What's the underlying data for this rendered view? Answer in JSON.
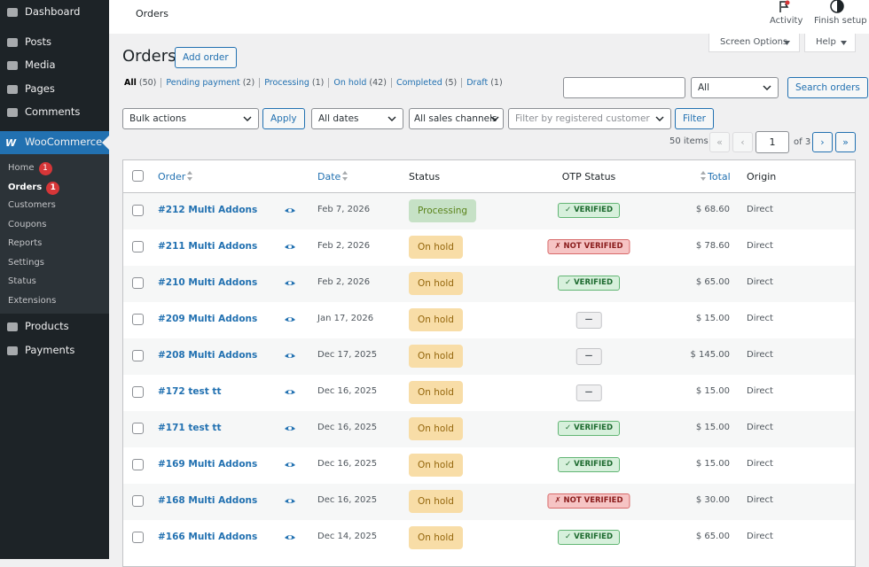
{
  "sidebar": {
    "top": [
      {
        "label": "Dashboard"
      },
      {
        "label": "Posts"
      },
      {
        "label": "Media"
      },
      {
        "label": "Pages"
      },
      {
        "label": "Comments"
      }
    ],
    "active": "WooCommerce",
    "submenu": [
      {
        "label": "Home",
        "badge": "1"
      },
      {
        "label": "Orders",
        "badge": "1"
      },
      {
        "label": "Customers"
      },
      {
        "label": "Coupons"
      },
      {
        "label": "Reports"
      },
      {
        "label": "Settings"
      },
      {
        "label": "Status"
      },
      {
        "label": "Extensions"
      }
    ],
    "bottom": [
      {
        "label": "Products"
      },
      {
        "label": "Payments"
      }
    ]
  },
  "topbar": {
    "title": "Orders",
    "activity": "Activity",
    "finish_setup": "Finish setup"
  },
  "screen_options": "Screen Options",
  "help": "Help",
  "page": {
    "title": "Orders",
    "add_button": "Add order"
  },
  "views": [
    {
      "label": "All",
      "count": "(50)"
    },
    {
      "label": "Pending payment",
      "count": "(2)"
    },
    {
      "label": "Processing",
      "count": "(1)"
    },
    {
      "label": "On hold",
      "count": "(42)"
    },
    {
      "label": "Completed",
      "count": "(5)"
    },
    {
      "label": "Draft",
      "count": "(1)"
    }
  ],
  "search": {
    "select": "All",
    "button": "Search orders"
  },
  "filters": {
    "bulk_actions": "Bulk actions",
    "apply": "Apply",
    "dates": "All dates",
    "channels": "All sales channels",
    "customer_placeholder": "Filter by registered customer",
    "filter": "Filter"
  },
  "pagination": {
    "items": "50 items",
    "first": "«",
    "prev": "‹",
    "current": "1",
    "of": "of 3",
    "next": "›",
    "last": "»"
  },
  "table": {
    "columns": [
      "Order",
      "Date",
      "Status",
      "OTP Status",
      "Total",
      "Origin"
    ],
    "rows": [
      [
        "#212 Multi Addons",
        "Feb 7, 2026",
        "Processing",
        "✓ VERIFIED",
        "$ 68.60",
        "Direct"
      ],
      [
        "#211 Multi Addons",
        "Feb 2, 2026",
        "On hold",
        "✗ NOT VERIFIED",
        "$ 78.60",
        "Direct"
      ],
      [
        "#210 Multi Addons",
        "Feb 2, 2026",
        "On hold",
        "✓ VERIFIED",
        "$ 65.00",
        "Direct"
      ],
      [
        "#209 Multi Addons",
        "Jan 17, 2026",
        "On hold",
        "—",
        "$ 15.00",
        "Direct"
      ],
      [
        "#208 Multi Addons",
        "Dec 17, 2025",
        "On hold",
        "—",
        "$ 145.00",
        "Direct"
      ],
      [
        "#172 test tt",
        "Dec 16, 2025",
        "On hold",
        "—",
        "$ 15.00",
        "Direct"
      ],
      [
        "#171 test tt",
        "Dec 16, 2025",
        "On hold",
        "✓ VERIFIED",
        "$ 15.00",
        "Direct"
      ],
      [
        "#169 Multi Addons",
        "Dec 16, 2025",
        "On hold",
        "✓ VERIFIED",
        "$ 15.00",
        "Direct"
      ],
      [
        "#168 Multi Addons",
        "Dec 16, 2025",
        "On hold",
        "✗ NOT VERIFIED",
        "$ 30.00",
        "Direct"
      ],
      [
        "#166 Multi Addons",
        "Dec 14, 2025",
        "On hold",
        "✓ VERIFIED",
        "$ 65.00",
        "Direct"
      ]
    ]
  }
}
